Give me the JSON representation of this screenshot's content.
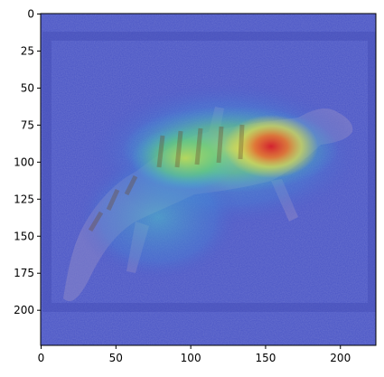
{
  "figure": {
    "description_kind": "grad-cam heatmap overlay on lizard photo",
    "colormap": "jet",
    "overlay_alpha": 0.55
  },
  "axes": {
    "xlim": [
      0,
      224
    ],
    "ylim": [
      224,
      0
    ],
    "x_ticks": [
      "0",
      "50",
      "100",
      "150",
      "200"
    ],
    "y_ticks": [
      "0",
      "25",
      "50",
      "75",
      "100",
      "125",
      "150",
      "175",
      "200"
    ]
  },
  "colors": {
    "background_blue": "#4a56c8",
    "hot_red": "#e0202a",
    "warm_yellow": "#e8e04a",
    "mid_green": "#5ad07a",
    "cyan": "#38b8d8"
  }
}
